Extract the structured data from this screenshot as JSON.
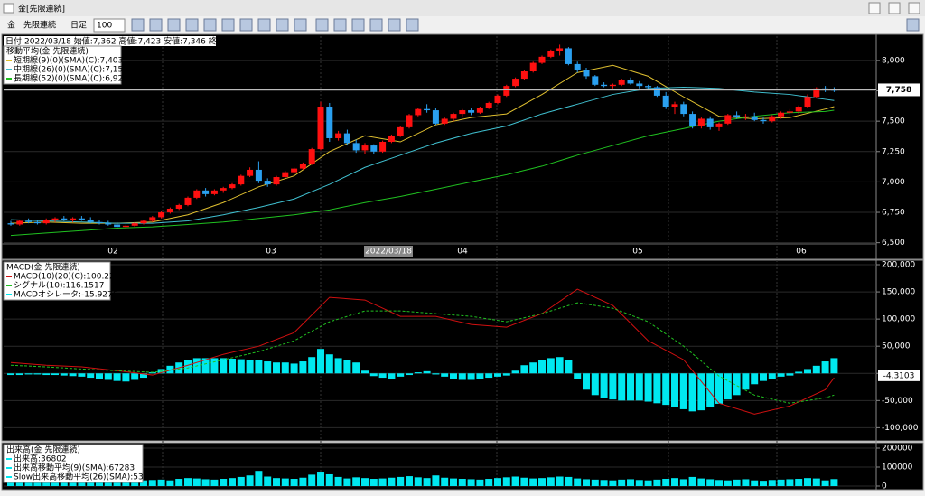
{
  "window": {
    "title": "金[先限連続]"
  },
  "toolbar": {
    "symbol": "金",
    "contract": "先限連続",
    "period": "日足",
    "count": "100"
  },
  "price_panel": {
    "info": "日付:2022/03/18 始値:7,362 高値:7,423 安値:7,346 終値:7,361",
    "legend_title": "移動平均(金 先限連続)",
    "ylim": [
      6490,
      8200
    ],
    "yticks": [
      {
        "value": 8000,
        "label": "8,000"
      },
      {
        "value": 7750,
        "label": "7,750"
      },
      {
        "value": 7500,
        "label": "7,500"
      },
      {
        "value": 7250,
        "label": "7,250"
      },
      {
        "value": 7000,
        "label": "7,000"
      },
      {
        "value": 6750,
        "label": "6,750"
      },
      {
        "value": 6500,
        "label": "6,500"
      }
    ],
    "dates": [
      "02",
      "03",
      "2022/03/18",
      "04",
      "05",
      "06"
    ],
    "last_price": {
      "value": 7758,
      "label": "7,758"
    },
    "up_color": "#ff1010",
    "down_color": "#2aa0f0",
    "candles": [
      [
        6660,
        6680,
        6640,
        6650
      ],
      [
        6650,
        6690,
        6640,
        6680
      ],
      [
        6680,
        6700,
        6660,
        6670
      ],
      [
        6670,
        6690,
        6650,
        6660
      ],
      [
        6660,
        6700,
        6650,
        6690
      ],
      [
        6690,
        6710,
        6670,
        6700
      ],
      [
        6700,
        6720,
        6680,
        6690
      ],
      [
        6690,
        6710,
        6670,
        6700
      ],
      [
        6700,
        6720,
        6680,
        6690
      ],
      [
        6690,
        6710,
        6660,
        6670
      ],
      [
        6670,
        6690,
        6650,
        6660
      ],
      [
        6660,
        6680,
        6640,
        6650
      ],
      [
        6650,
        6670,
        6620,
        6630
      ],
      [
        6630,
        6650,
        6610,
        6640
      ],
      [
        6640,
        6670,
        6630,
        6660
      ],
      [
        6660,
        6690,
        6650,
        6680
      ],
      [
        6680,
        6720,
        6670,
        6710
      ],
      [
        6710,
        6760,
        6700,
        6750
      ],
      [
        6750,
        6790,
        6740,
        6780
      ],
      [
        6780,
        6820,
        6770,
        6810
      ],
      [
        6810,
        6880,
        6800,
        6870
      ],
      [
        6870,
        6940,
        6860,
        6930
      ],
      [
        6930,
        6950,
        6880,
        6900
      ],
      [
        6900,
        6940,
        6890,
        6930
      ],
      [
        6930,
        6960,
        6910,
        6950
      ],
      [
        6950,
        6990,
        6940,
        6980
      ],
      [
        6980,
        7060,
        6970,
        7050
      ],
      [
        7050,
        7120,
        7040,
        7100
      ],
      [
        7100,
        7170,
        6990,
        7010
      ],
      [
        7010,
        7030,
        6960,
        6980
      ],
      [
        6980,
        7050,
        6970,
        7040
      ],
      [
        7040,
        7090,
        7030,
        7080
      ],
      [
        7080,
        7120,
        7070,
        7110
      ],
      [
        7110,
        7160,
        7100,
        7150
      ],
      [
        7150,
        7280,
        7140,
        7270
      ],
      [
        7270,
        7660,
        7260,
        7620
      ],
      [
        7620,
        7650,
        7330,
        7360
      ],
      [
        7360,
        7420,
        7340,
        7400
      ],
      [
        7400,
        7430,
        7300,
        7320
      ],
      [
        7320,
        7350,
        7240,
        7260
      ],
      [
        7260,
        7320,
        7230,
        7300
      ],
      [
        7300,
        7310,
        7230,
        7250
      ],
      [
        7250,
        7340,
        7240,
        7330
      ],
      [
        7330,
        7390,
        7320,
        7380
      ],
      [
        7380,
        7460,
        7370,
        7450
      ],
      [
        7450,
        7560,
        7440,
        7550
      ],
      [
        7550,
        7610,
        7540,
        7600
      ],
      [
        7600,
        7640,
        7570,
        7590
      ],
      [
        7590,
        7610,
        7470,
        7480
      ],
      [
        7480,
        7530,
        7470,
        7520
      ],
      [
        7520,
        7570,
        7500,
        7560
      ],
      [
        7560,
        7600,
        7540,
        7590
      ],
      [
        7590,
        7610,
        7550,
        7570
      ],
      [
        7570,
        7620,
        7560,
        7610
      ],
      [
        7610,
        7660,
        7600,
        7650
      ],
      [
        7650,
        7720,
        7640,
        7710
      ],
      [
        7710,
        7800,
        7700,
        7790
      ],
      [
        7790,
        7860,
        7780,
        7850
      ],
      [
        7850,
        7920,
        7840,
        7910
      ],
      [
        7910,
        7990,
        7900,
        7980
      ],
      [
        7980,
        8040,
        7970,
        8030
      ],
      [
        8030,
        8090,
        8020,
        8080
      ],
      [
        8080,
        8130,
        8040,
        8100
      ],
      [
        8100,
        8110,
        7960,
        7970
      ],
      [
        7970,
        7990,
        7900,
        7920
      ],
      [
        7920,
        7940,
        7850,
        7870
      ],
      [
        7870,
        7880,
        7790,
        7800
      ],
      [
        7800,
        7820,
        7780,
        7790
      ],
      [
        7790,
        7810,
        7770,
        7800
      ],
      [
        7800,
        7850,
        7790,
        7840
      ],
      [
        7840,
        7860,
        7800,
        7810
      ],
      [
        7810,
        7830,
        7770,
        7790
      ],
      [
        7790,
        7800,
        7760,
        7780
      ],
      [
        7780,
        7790,
        7700,
        7710
      ],
      [
        7710,
        7740,
        7600,
        7620
      ],
      [
        7620,
        7660,
        7560,
        7640
      ],
      [
        7640,
        7660,
        7540,
        7560
      ],
      [
        7560,
        7580,
        7440,
        7460
      ],
      [
        7460,
        7530,
        7440,
        7520
      ],
      [
        7520,
        7540,
        7430,
        7450
      ],
      [
        7450,
        7490,
        7420,
        7480
      ],
      [
        7480,
        7560,
        7470,
        7550
      ],
      [
        7550,
        7580,
        7520,
        7530
      ],
      [
        7530,
        7560,
        7510,
        7540
      ],
      [
        7540,
        7570,
        7500,
        7510
      ],
      [
        7510,
        7530,
        7480,
        7500
      ],
      [
        7500,
        7550,
        7490,
        7540
      ],
      [
        7540,
        7580,
        7520,
        7570
      ],
      [
        7570,
        7600,
        7550,
        7580
      ],
      [
        7580,
        7630,
        7560,
        7620
      ],
      [
        7620,
        7720,
        7610,
        7700
      ],
      [
        7700,
        7780,
        7690,
        7770
      ],
      [
        7770,
        7790,
        7740,
        7760
      ],
      [
        7760,
        7780,
        7740,
        7758
      ]
    ],
    "line_x": [
      0,
      4,
      8,
      12,
      16,
      20,
      24,
      28,
      32,
      36,
      40,
      44,
      48,
      52,
      56,
      60,
      64,
      68,
      72,
      76,
      80,
      84,
      88,
      92,
      93
    ],
    "moving_averages": [
      {
        "name": "短期線(9)(0)(SMA)(C):7,403",
        "color": "#e0c030",
        "values": [
          6660,
          6670,
          6660,
          6660,
          6670,
          6730,
          6830,
          6960,
          7050,
          7250,
          7380,
          7330,
          7470,
          7530,
          7560,
          7720,
          7900,
          7960,
          7870,
          7700,
          7540,
          7520,
          7530,
          7600,
          7620
        ]
      },
      {
        "name": "中期線(26)(0)(SMA)(C):7,151",
        "color": "#40c0d0",
        "values": [
          6690,
          6680,
          6670,
          6660,
          6660,
          6680,
          6730,
          6790,
          6860,
          6980,
          7120,
          7220,
          7320,
          7400,
          7460,
          7560,
          7640,
          7720,
          7770,
          7780,
          7770,
          7740,
          7720,
          7680,
          7670
        ]
      },
      {
        "name": "長期線(52)(0)(SMA)(C):6,922",
        "color": "#20c020",
        "values": [
          6560,
          6580,
          6600,
          6620,
          6630,
          6650,
          6670,
          6700,
          6730,
          6770,
          6830,
          6880,
          6940,
          7000,
          7060,
          7130,
          7220,
          7300,
          7380,
          7440,
          7500,
          7540,
          7570,
          7580,
          7590
        ]
      }
    ]
  },
  "macd_panel": {
    "title": "MACD(金 先限連続)",
    "ylim": [
      -121,
      205
    ],
    "yticks": [
      {
        "value": 200,
        "label": "200,000"
      },
      {
        "value": 150,
        "label": "150,000"
      },
      {
        "value": 100,
        "label": "100,000"
      },
      {
        "value": 50,
        "label": "50,000"
      },
      {
        "value": 0,
        "label": "0,000"
      },
      {
        "value": -50,
        "label": "-50,000"
      },
      {
        "value": -100,
        "label": "-100,000"
      }
    ],
    "last_value": -4.3103,
    "macd": {
      "name": "MACD(10)(20)(C):100.2241",
      "color": "#d01010",
      "values": [
        20,
        15,
        12,
        5,
        -3,
        15,
        35,
        50,
        75,
        140,
        135,
        105,
        105,
        90,
        85,
        110,
        155,
        125,
        60,
        25,
        -55,
        -75,
        -60,
        -30,
        -8
      ]
    },
    "signal": {
      "name": "シグナル(10):116.1517",
      "color": "#20c020",
      "values": [
        15,
        12,
        8,
        5,
        2,
        10,
        25,
        40,
        60,
        95,
        115,
        115,
        110,
        105,
        95,
        110,
        130,
        120,
        95,
        50,
        -5,
        -40,
        -55,
        -45,
        -40
      ]
    },
    "oscillator": {
      "name": "MACDオシレータ:-15.9276",
      "color": "#00e8f0",
      "values": [
        -3,
        -3,
        -2,
        -2,
        -3,
        -3,
        -4,
        -5,
        -6,
        -8,
        -10,
        -12,
        -14,
        -15,
        -12,
        -8,
        2,
        8,
        14,
        20,
        25,
        28,
        28,
        28,
        28,
        27,
        26,
        25,
        24,
        22,
        20,
        20,
        18,
        22,
        30,
        45,
        35,
        28,
        24,
        20,
        5,
        -5,
        -8,
        -10,
        -6,
        -3,
        2,
        4,
        -2,
        -6,
        -10,
        -12,
        -12,
        -10,
        -8,
        -6,
        -4,
        5,
        15,
        20,
        25,
        28,
        30,
        25,
        -10,
        -30,
        -40,
        -45,
        -48,
        -50,
        -50,
        -50,
        -52,
        -55,
        -58,
        -62,
        -66,
        -70,
        -68,
        -62,
        -56,
        -48,
        -40,
        -30,
        -20,
        -14,
        -10,
        -6,
        -4,
        3,
        8,
        14,
        22,
        28
      ]
    }
  },
  "volume_panel": {
    "title": "出来高(金 先限連続)",
    "legend": [
      "出来高:36802",
      "出来高移動平均(9)(SMA):67283",
      "Slow出来高移動平均(26)(SMA):53710"
    ],
    "ylim": [
      -9500,
      219000
    ],
    "yticks": [
      0,
      100000,
      200000
    ],
    "color": "#00e8f0",
    "values": [
      25000,
      20000,
      22000,
      18000,
      20000,
      24000,
      22000,
      20000,
      26000,
      24000,
      22000,
      20000,
      28000,
      26000,
      24000,
      30000,
      32000,
      34000,
      30000,
      38000,
      42000,
      40000,
      36000,
      34000,
      38000,
      42000,
      48000,
      56000,
      80000,
      50000,
      42000,
      40000,
      38000,
      44000,
      60000,
      76000,
      62000,
      48000,
      40000,
      46000,
      42000,
      38000,
      40000,
      44000,
      48000,
      52000,
      46000,
      42000,
      56000,
      44000,
      40000,
      38000,
      36000,
      34000,
      38000,
      42000,
      46000,
      50000,
      44000,
      40000,
      42000,
      46000,
      50000,
      48000,
      40000,
      36000,
      34000,
      32000,
      30000,
      34000,
      36000,
      32000,
      30000,
      34000,
      38000,
      42000,
      36000,
      48000,
      40000,
      36000,
      32000,
      30000,
      34000,
      36000,
      30000,
      28000,
      32000,
      34000,
      36000,
      38000,
      42000,
      40000,
      30000,
      36802
    ]
  }
}
